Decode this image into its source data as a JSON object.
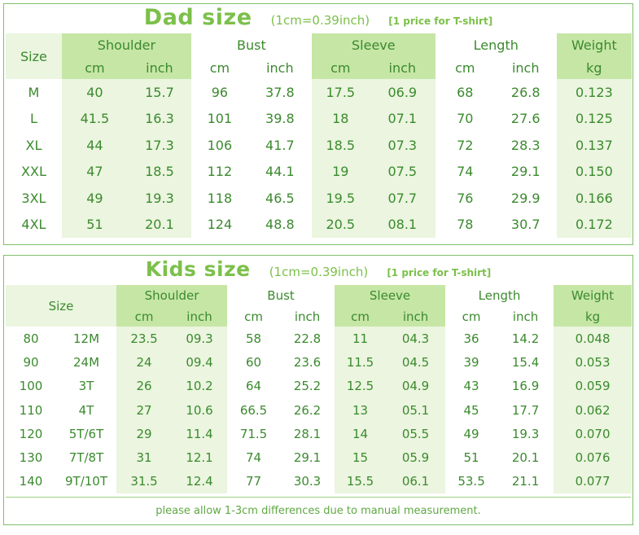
{
  "dad": {
    "title": "Dad size",
    "unit_note": "(1cm=0.39inch)",
    "price_note": "[1 price for T-shirt]",
    "size_header": "Size",
    "groups": [
      "Shoulder",
      "Bust",
      "Sleeve",
      "Length"
    ],
    "weight_header": "Weight",
    "weight_unit": "kg",
    "cm": "cm",
    "inch": "inch",
    "rows": [
      [
        "M",
        "40",
        "15.7",
        "96",
        "37.8",
        "17.5",
        "06.9",
        "68",
        "26.8",
        "0.123"
      ],
      [
        "L",
        "41.5",
        "16.3",
        "101",
        "39.8",
        "18",
        "07.1",
        "70",
        "27.6",
        "0.125"
      ],
      [
        "XL",
        "44",
        "17.3",
        "106",
        "41.7",
        "18.5",
        "07.3",
        "72",
        "28.3",
        "0.137"
      ],
      [
        "XXL",
        "47",
        "18.5",
        "112",
        "44.1",
        "19",
        "07.5",
        "74",
        "29.1",
        "0.150"
      ],
      [
        "3XL",
        "49",
        "19.3",
        "118",
        "46.5",
        "19.5",
        "07.7",
        "76",
        "29.9",
        "0.166"
      ],
      [
        "4XL",
        "51",
        "20.1",
        "124",
        "48.8",
        "20.5",
        "08.1",
        "78",
        "30.7",
        "0.172"
      ]
    ]
  },
  "kids": {
    "title": "Kids size",
    "unit_note": "(1cm=0.39inch)",
    "price_note": "[1 price for T-shirt]",
    "size_header": "Size",
    "groups": [
      "Shoulder",
      "Bust",
      "Sleeve",
      "Length"
    ],
    "weight_header": "Weight",
    "weight_unit": "kg",
    "cm": "cm",
    "inch": "inch",
    "rows": [
      [
        "80",
        "12M",
        "23.5",
        "09.3",
        "58",
        "22.8",
        "11",
        "04.3",
        "36",
        "14.2",
        "0.048"
      ],
      [
        "90",
        "24M",
        "24",
        "09.4",
        "60",
        "23.6",
        "11.5",
        "04.5",
        "39",
        "15.4",
        "0.053"
      ],
      [
        "100",
        "3T",
        "26",
        "10.2",
        "64",
        "25.2",
        "12.5",
        "04.9",
        "43",
        "16.9",
        "0.059"
      ],
      [
        "110",
        "4T",
        "27",
        "10.6",
        "66.5",
        "26.2",
        "13",
        "05.1",
        "45",
        "17.7",
        "0.062"
      ],
      [
        "120",
        "5T/6T",
        "29",
        "11.4",
        "71.5",
        "28.1",
        "14",
        "05.5",
        "49",
        "19.3",
        "0.070"
      ],
      [
        "130",
        "7T/8T",
        "31",
        "12.1",
        "74",
        "29.1",
        "15",
        "05.9",
        "51",
        "20.1",
        "0.076"
      ],
      [
        "140",
        "9T/10T",
        "31.5",
        "12.4",
        "77",
        "30.3",
        "15.5",
        "06.1",
        "53.5",
        "21.1",
        "0.077"
      ]
    ],
    "footer": "please allow 1-3cm differences due to manual measurement."
  }
}
